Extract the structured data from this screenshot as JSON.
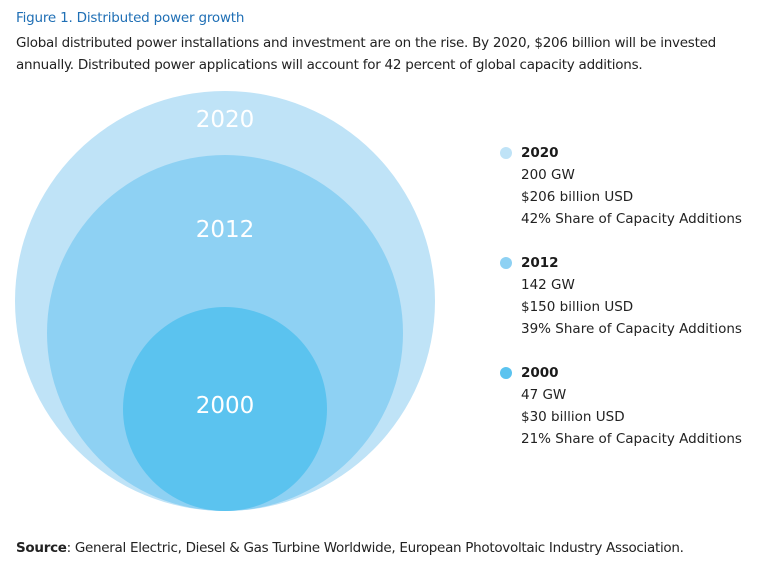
{
  "figure": {
    "title": "Figure 1. Distributed power growth",
    "description": "Global distributed power installations and investment are on the rise. By 2020, $206 billion will be invested annually. Distributed power applications will account for 42 percent of global capacity additions."
  },
  "chart_data": {
    "type": "bubble",
    "title": "Figure 1. Distributed power growth",
    "series": [
      {
        "name": "2020",
        "capacity_gw": 200,
        "investment_usd_billion": 206,
        "share_of_capacity_additions_pct": 42,
        "color": "#bfe3f7",
        "lines": [
          "200 GW",
          "$206 billion USD",
          "42% Share of Capacity Additions"
        ]
      },
      {
        "name": "2012",
        "capacity_gw": 142,
        "investment_usd_billion": 150,
        "share_of_capacity_additions_pct": 39,
        "color": "#8ed1f3",
        "lines": [
          "142 GW",
          "$150 billion USD",
          "39% Share of Capacity Additions"
        ]
      },
      {
        "name": "2000",
        "capacity_gw": 47,
        "investment_usd_billion": 30,
        "share_of_capacity_additions_pct": 21,
        "color": "#5bc3ef",
        "lines": [
          "47 GW",
          "$30 billion USD",
          "21% Share of Capacity Additions"
        ]
      }
    ],
    "legend": "right"
  },
  "source": {
    "label": "Source",
    "text": ": General Electric, Diesel & Gas Turbine Worldwide, European Photovoltaic Industry Association."
  }
}
